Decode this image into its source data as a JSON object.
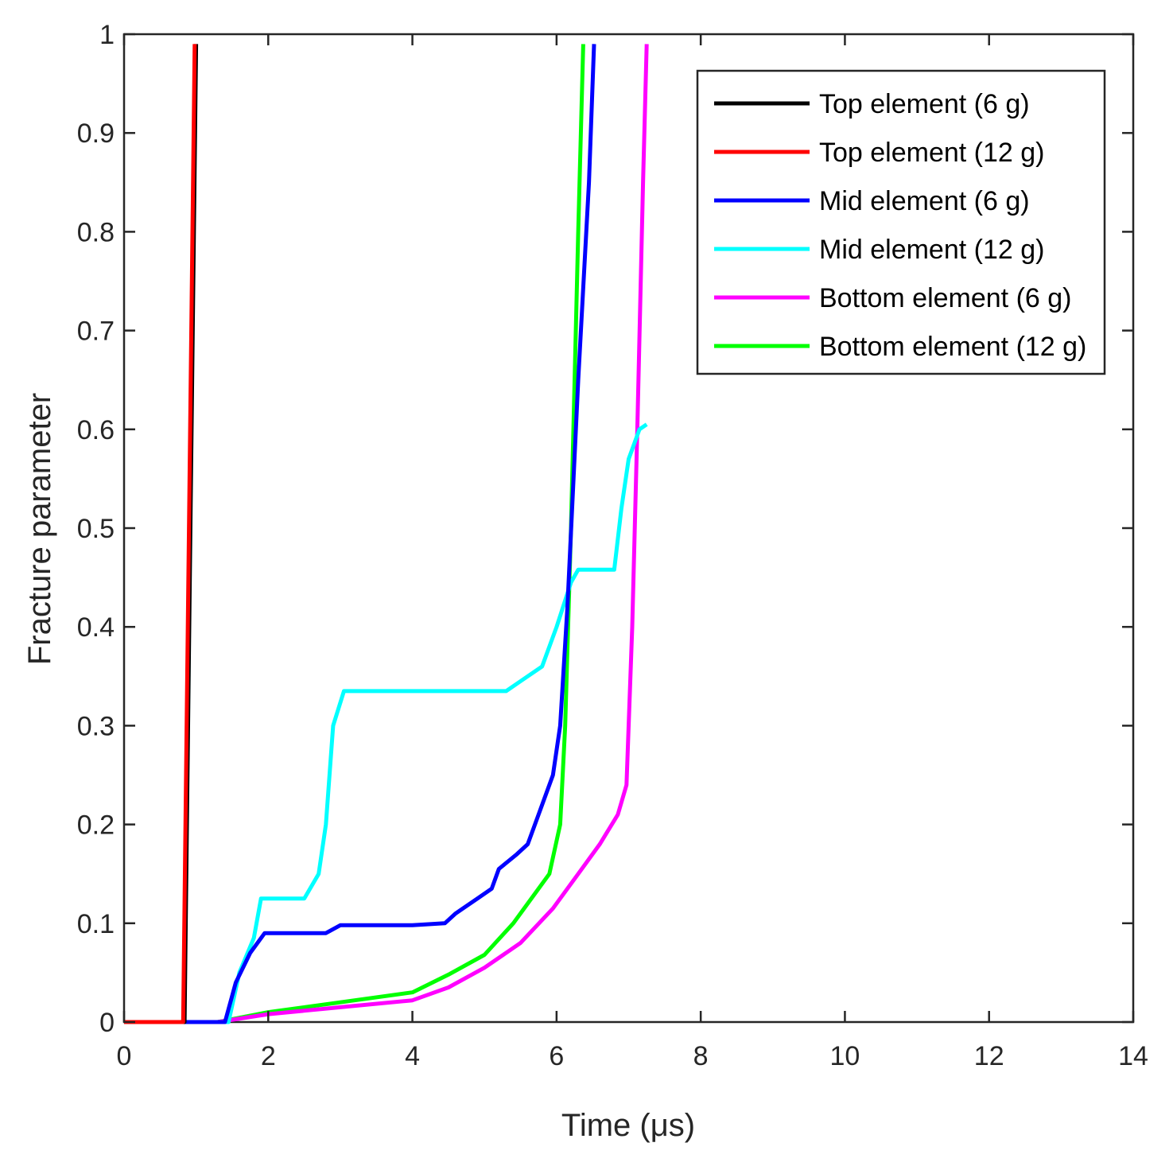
{
  "chart_data": {
    "type": "line",
    "title": "",
    "xlabel": "Time (μs)",
    "ylabel": "Fracture parameter",
    "xlim": [
      0,
      14
    ],
    "ylim": [
      0,
      1
    ],
    "xticks": [
      "0",
      "2",
      "4",
      "6",
      "8",
      "10",
      "12",
      "14"
    ],
    "yticks": [
      "0",
      "0.1",
      "0.2",
      "0.3",
      "0.4",
      "0.5",
      "0.6",
      "0.7",
      "0.8",
      "0.9",
      "1"
    ],
    "grid": false,
    "legend_position": "top-right",
    "series": [
      {
        "name": "Top element (6 g)",
        "color": "#000000",
        "points": [
          [
            0,
            0
          ],
          [
            0.84,
            0
          ],
          [
            1.0,
            0.99
          ]
        ]
      },
      {
        "name": "Top element (12 g)",
        "color": "#ff0000",
        "points": [
          [
            0,
            0
          ],
          [
            0.82,
            0
          ],
          [
            0.98,
            0.99
          ]
        ]
      },
      {
        "name": "Mid element (6 g)",
        "color": "#0000ff",
        "points": [
          [
            0,
            0
          ],
          [
            1.4,
            0
          ],
          [
            1.55,
            0.04
          ],
          [
            1.75,
            0.07
          ],
          [
            1.95,
            0.09
          ],
          [
            2.5,
            0.09
          ],
          [
            2.8,
            0.09
          ],
          [
            3.0,
            0.098
          ],
          [
            3.5,
            0.098
          ],
          [
            4.0,
            0.098
          ],
          [
            4.45,
            0.1
          ],
          [
            4.6,
            0.11
          ],
          [
            4.9,
            0.125
          ],
          [
            5.1,
            0.135
          ],
          [
            5.2,
            0.155
          ],
          [
            5.45,
            0.17
          ],
          [
            5.6,
            0.18
          ],
          [
            5.75,
            0.21
          ],
          [
            5.95,
            0.25
          ],
          [
            6.05,
            0.3
          ],
          [
            6.15,
            0.42
          ],
          [
            6.3,
            0.65
          ],
          [
            6.45,
            0.85
          ],
          [
            6.52,
            0.99
          ]
        ]
      },
      {
        "name": "Mid element (12 g)",
        "color": "#00ffff",
        "points": [
          [
            0,
            0
          ],
          [
            1.45,
            0
          ],
          [
            1.6,
            0.05
          ],
          [
            1.8,
            0.085
          ],
          [
            1.9,
            0.125
          ],
          [
            2.5,
            0.125
          ],
          [
            2.7,
            0.15
          ],
          [
            2.8,
            0.2
          ],
          [
            2.9,
            0.3
          ],
          [
            3.05,
            0.335
          ],
          [
            4.0,
            0.335
          ],
          [
            5.3,
            0.335
          ],
          [
            5.5,
            0.345
          ],
          [
            5.8,
            0.36
          ],
          [
            6.0,
            0.4
          ],
          [
            6.2,
            0.445
          ],
          [
            6.3,
            0.458
          ],
          [
            6.8,
            0.458
          ],
          [
            6.9,
            0.52
          ],
          [
            7.0,
            0.57
          ],
          [
            7.15,
            0.6
          ],
          [
            7.25,
            0.605
          ]
        ]
      },
      {
        "name": "Bottom element (6 g)",
        "color": "#ff00ff",
        "points": [
          [
            0,
            0
          ],
          [
            1.3,
            0
          ],
          [
            2.0,
            0.008
          ],
          [
            3.0,
            0.015
          ],
          [
            4.0,
            0.022
          ],
          [
            4.5,
            0.035
          ],
          [
            5.0,
            0.055
          ],
          [
            5.5,
            0.08
          ],
          [
            5.95,
            0.115
          ],
          [
            6.3,
            0.15
          ],
          [
            6.6,
            0.18
          ],
          [
            6.85,
            0.21
          ],
          [
            6.97,
            0.24
          ],
          [
            7.05,
            0.4
          ],
          [
            7.12,
            0.6
          ],
          [
            7.2,
            0.85
          ],
          [
            7.25,
            0.99
          ]
        ]
      },
      {
        "name": "Bottom element (12 g)",
        "color": "#00ff00",
        "points": [
          [
            0,
            0
          ],
          [
            1.3,
            0
          ],
          [
            2.0,
            0.01
          ],
          [
            3.0,
            0.02
          ],
          [
            4.0,
            0.03
          ],
          [
            4.5,
            0.048
          ],
          [
            5.0,
            0.068
          ],
          [
            5.4,
            0.1
          ],
          [
            5.9,
            0.15
          ],
          [
            6.05,
            0.2
          ],
          [
            6.12,
            0.3
          ],
          [
            6.2,
            0.5
          ],
          [
            6.3,
            0.8
          ],
          [
            6.37,
            0.99
          ]
        ]
      }
    ]
  }
}
